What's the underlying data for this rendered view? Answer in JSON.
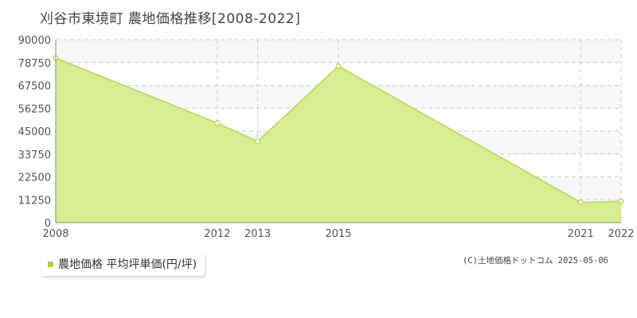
{
  "chart_data": {
    "type": "area",
    "title": "刈谷市東境町 農地価格推移[2008-2022]",
    "x": [
      2008,
      2012,
      2013,
      2015,
      2021,
      2022
    ],
    "x_tick_labels": [
      "2008",
      "2012",
      "2013",
      "2015",
      "2021",
      "2022"
    ],
    "series": [
      {
        "name": "農地価格 平均坪単価(円/坪)",
        "values": [
          81000,
          49000,
          40000,
          77000,
          10000,
          10500
        ]
      }
    ],
    "ylim": [
      0,
      90000
    ],
    "y_ticks": [
      0,
      11250,
      22500,
      33750,
      45000,
      56250,
      67500,
      78750,
      90000
    ],
    "y_tick_labels": [
      "0",
      "11250",
      "22500",
      "33750",
      "45000",
      "56250",
      "67500",
      "78750",
      "90000"
    ],
    "grid": true,
    "legend_position": "bottom-left"
  },
  "legend": {
    "label": "農地価格 平均坪単価(円/坪)"
  },
  "colors": {
    "fill": "#d9ec91",
    "line": "#b5dd3f",
    "swatch": "#a8d43a",
    "band": "#f7f7f9"
  },
  "copyright": "(C)土地価格ドットコム 2025-05-06"
}
